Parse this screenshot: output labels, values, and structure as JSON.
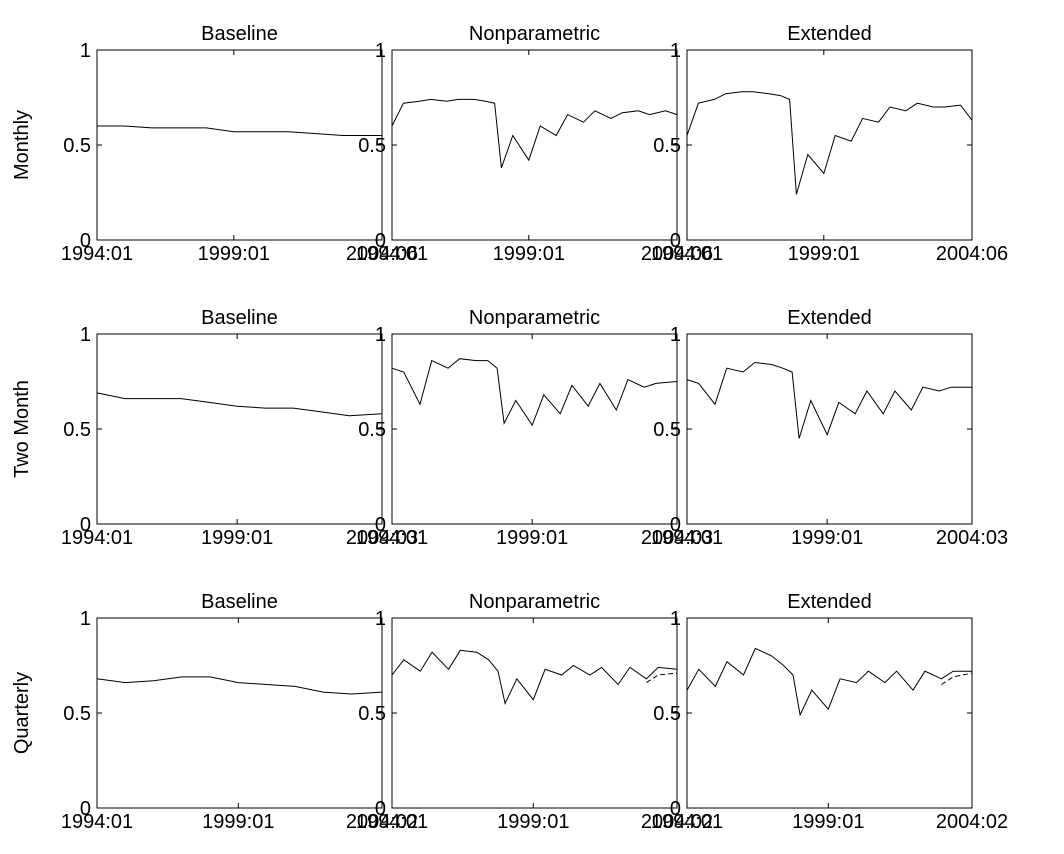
{
  "chart_data": [
    {
      "type": "line",
      "row": "Monthly",
      "title": "Baseline",
      "ylabel": "Monthly",
      "ylim": [
        0,
        1
      ],
      "yticks": [
        "0",
        "0.5",
        "1"
      ],
      "xticks": [
        "1994:01",
        "1999:01",
        "2004:06"
      ],
      "series": [
        {
          "style": "solid",
          "x": [
            "1994:01",
            "1995:01",
            "1996:01",
            "1997:01",
            "1998:01",
            "1999:01",
            "2000:01",
            "2001:01",
            "2002:01",
            "2003:01",
            "2004:06"
          ],
          "y": [
            0.6,
            0.6,
            0.59,
            0.59,
            0.59,
            0.57,
            0.57,
            0.57,
            0.56,
            0.55,
            0.55
          ]
        }
      ]
    },
    {
      "type": "line",
      "row": "Monthly",
      "title": "Nonparametric",
      "ylim": [
        0,
        1
      ],
      "yticks": [
        "0",
        "0.5",
        "1"
      ],
      "xticks": [
        "1994:01",
        "1999:01",
        "2004:06"
      ],
      "series": [
        {
          "style": "solid",
          "x": [
            "1994:01",
            "1994:06",
            "1995:01",
            "1995:06",
            "1996:01",
            "1996:06",
            "1997:01",
            "1997:06",
            "1997:10",
            "1998:01",
            "1998:06",
            "1999:01",
            "1999:06",
            "2000:01",
            "2000:06",
            "2001:01",
            "2001:06",
            "2002:01",
            "2002:06",
            "2003:01",
            "2003:06",
            "2004:01",
            "2004:06"
          ],
          "y": [
            0.6,
            0.72,
            0.73,
            0.74,
            0.73,
            0.74,
            0.74,
            0.73,
            0.72,
            0.38,
            0.55,
            0.42,
            0.6,
            0.55,
            0.66,
            0.62,
            0.68,
            0.64,
            0.67,
            0.68,
            0.66,
            0.68,
            0.66
          ]
        }
      ]
    },
    {
      "type": "line",
      "row": "Monthly",
      "title": "Extended",
      "ylim": [
        0,
        1
      ],
      "yticks": [
        "0",
        "0.5",
        "1"
      ],
      "xticks": [
        "1994:01",
        "1999:01",
        "2004:06"
      ],
      "series": [
        {
          "style": "solid",
          "x": [
            "1994:01",
            "1994:06",
            "1995:01",
            "1995:06",
            "1996:01",
            "1996:06",
            "1997:01",
            "1997:06",
            "1997:10",
            "1998:01",
            "1998:06",
            "1999:01",
            "1999:06",
            "2000:01",
            "2000:06",
            "2001:01",
            "2001:06",
            "2002:01",
            "2002:06",
            "2003:01",
            "2003:06",
            "2004:01",
            "2004:06"
          ],
          "y": [
            0.55,
            0.72,
            0.74,
            0.77,
            0.78,
            0.78,
            0.77,
            0.76,
            0.74,
            0.24,
            0.45,
            0.35,
            0.55,
            0.52,
            0.64,
            0.62,
            0.7,
            0.68,
            0.72,
            0.7,
            0.7,
            0.71,
            0.63
          ]
        }
      ]
    },
    {
      "type": "line",
      "row": "Two Month",
      "title": "Baseline",
      "ylabel": "Two Month",
      "ylim": [
        0,
        1
      ],
      "yticks": [
        "0",
        "0.5",
        "1"
      ],
      "xticks": [
        "1994:01",
        "1999:01",
        "2004:03"
      ],
      "series": [
        {
          "style": "solid",
          "x": [
            "1994:01",
            "1995:01",
            "1996:01",
            "1997:01",
            "1998:01",
            "1999:01",
            "2000:01",
            "2001:01",
            "2002:01",
            "2003:01",
            "2004:03"
          ],
          "y": [
            0.69,
            0.66,
            0.66,
            0.66,
            0.64,
            0.62,
            0.61,
            0.61,
            0.59,
            0.57,
            0.58
          ]
        }
      ]
    },
    {
      "type": "line",
      "row": "Two Month",
      "title": "Nonparametric",
      "ylim": [
        0,
        1
      ],
      "yticks": [
        "0",
        "0.5",
        "1"
      ],
      "xticks": [
        "1994:01",
        "1999:01",
        "2004:03"
      ],
      "series": [
        {
          "style": "solid",
          "x": [
            "1994:01",
            "1994:06",
            "1995:01",
            "1995:06",
            "1996:01",
            "1996:06",
            "1997:01",
            "1997:06",
            "1997:10",
            "1998:01",
            "1998:06",
            "1999:01",
            "1999:06",
            "2000:01",
            "2000:06",
            "2001:01",
            "2001:06",
            "2002:01",
            "2002:06",
            "2003:01",
            "2003:06",
            "2004:03"
          ],
          "y": [
            0.82,
            0.8,
            0.63,
            0.86,
            0.82,
            0.87,
            0.86,
            0.86,
            0.82,
            0.53,
            0.65,
            0.52,
            0.68,
            0.58,
            0.73,
            0.62,
            0.74,
            0.6,
            0.76,
            0.72,
            0.74,
            0.75
          ]
        }
      ]
    },
    {
      "type": "line",
      "row": "Two Month",
      "title": "Extended",
      "ylim": [
        0,
        1
      ],
      "yticks": [
        "0",
        "0.5",
        "1"
      ],
      "xticks": [
        "1994:01",
        "1999:01",
        "2004:03"
      ],
      "series": [
        {
          "style": "solid",
          "x": [
            "1994:01",
            "1994:06",
            "1995:01",
            "1995:06",
            "1996:01",
            "1996:06",
            "1997:01",
            "1997:06",
            "1997:10",
            "1998:01",
            "1998:06",
            "1999:01",
            "1999:06",
            "2000:01",
            "2000:06",
            "2001:01",
            "2001:06",
            "2002:01",
            "2002:06",
            "2003:01",
            "2003:06",
            "2004:03"
          ],
          "y": [
            0.76,
            0.74,
            0.63,
            0.82,
            0.8,
            0.85,
            0.84,
            0.82,
            0.8,
            0.45,
            0.65,
            0.47,
            0.64,
            0.58,
            0.7,
            0.58,
            0.7,
            0.6,
            0.72,
            0.7,
            0.72,
            0.72
          ]
        }
      ]
    },
    {
      "type": "line",
      "row": "Quarterly",
      "title": "Baseline",
      "ylabel": "Quarterly",
      "ylim": [
        0,
        1
      ],
      "yticks": [
        "0",
        "0.5",
        "1"
      ],
      "xticks": [
        "1994:01",
        "1999:01",
        "2004:02"
      ],
      "series": [
        {
          "style": "solid",
          "x": [
            "1994:01",
            "1995:01",
            "1996:01",
            "1997:01",
            "1998:01",
            "1999:01",
            "2000:01",
            "2001:01",
            "2002:01",
            "2003:01",
            "2004:02"
          ],
          "y": [
            0.68,
            0.66,
            0.67,
            0.69,
            0.69,
            0.66,
            0.65,
            0.64,
            0.61,
            0.6,
            0.61
          ]
        }
      ]
    },
    {
      "type": "line",
      "row": "Quarterly",
      "title": "Nonparametric",
      "ylim": [
        0,
        1
      ],
      "yticks": [
        "0",
        "0.5",
        "1"
      ],
      "xticks": [
        "1994:01",
        "1999:01",
        "2004:02"
      ],
      "series": [
        {
          "style": "solid",
          "x": [
            "1994:01",
            "1994:06",
            "1995:01",
            "1995:06",
            "1996:01",
            "1996:06",
            "1997:01",
            "1997:06",
            "1997:10",
            "1998:01",
            "1998:06",
            "1999:01",
            "1999:06",
            "2000:01",
            "2000:06",
            "2001:01",
            "2001:06",
            "2002:01",
            "2002:06",
            "2003:01",
            "2003:06",
            "2004:02"
          ],
          "y": [
            0.7,
            0.78,
            0.72,
            0.82,
            0.73,
            0.83,
            0.82,
            0.78,
            0.72,
            0.55,
            0.68,
            0.57,
            0.73,
            0.7,
            0.75,
            0.7,
            0.74,
            0.65,
            0.74,
            0.68,
            0.74,
            0.73
          ]
        },
        {
          "style": "dashed",
          "x": [
            "2003:01",
            "2003:06",
            "2004:02"
          ],
          "y": [
            0.66,
            0.7,
            0.71
          ]
        }
      ]
    },
    {
      "type": "line",
      "row": "Quarterly",
      "title": "Extended",
      "ylim": [
        0,
        1
      ],
      "yticks": [
        "0",
        "0.5",
        "1"
      ],
      "xticks": [
        "1994:01",
        "1999:01",
        "2004:02"
      ],
      "series": [
        {
          "style": "solid",
          "x": [
            "1994:01",
            "1994:06",
            "1995:01",
            "1995:06",
            "1996:01",
            "1996:06",
            "1997:01",
            "1997:06",
            "1997:10",
            "1998:01",
            "1998:06",
            "1999:01",
            "1999:06",
            "2000:01",
            "2000:06",
            "2001:01",
            "2001:06",
            "2002:01",
            "2002:06",
            "2003:01",
            "2003:06",
            "2004:02"
          ],
          "y": [
            0.62,
            0.73,
            0.64,
            0.77,
            0.7,
            0.84,
            0.8,
            0.75,
            0.7,
            0.49,
            0.62,
            0.52,
            0.68,
            0.66,
            0.72,
            0.66,
            0.72,
            0.62,
            0.72,
            0.68,
            0.72,
            0.72
          ]
        },
        {
          "style": "dashed",
          "x": [
            "2003:01",
            "2003:06",
            "2004:02"
          ],
          "y": [
            0.65,
            0.69,
            0.71
          ]
        }
      ]
    }
  ]
}
